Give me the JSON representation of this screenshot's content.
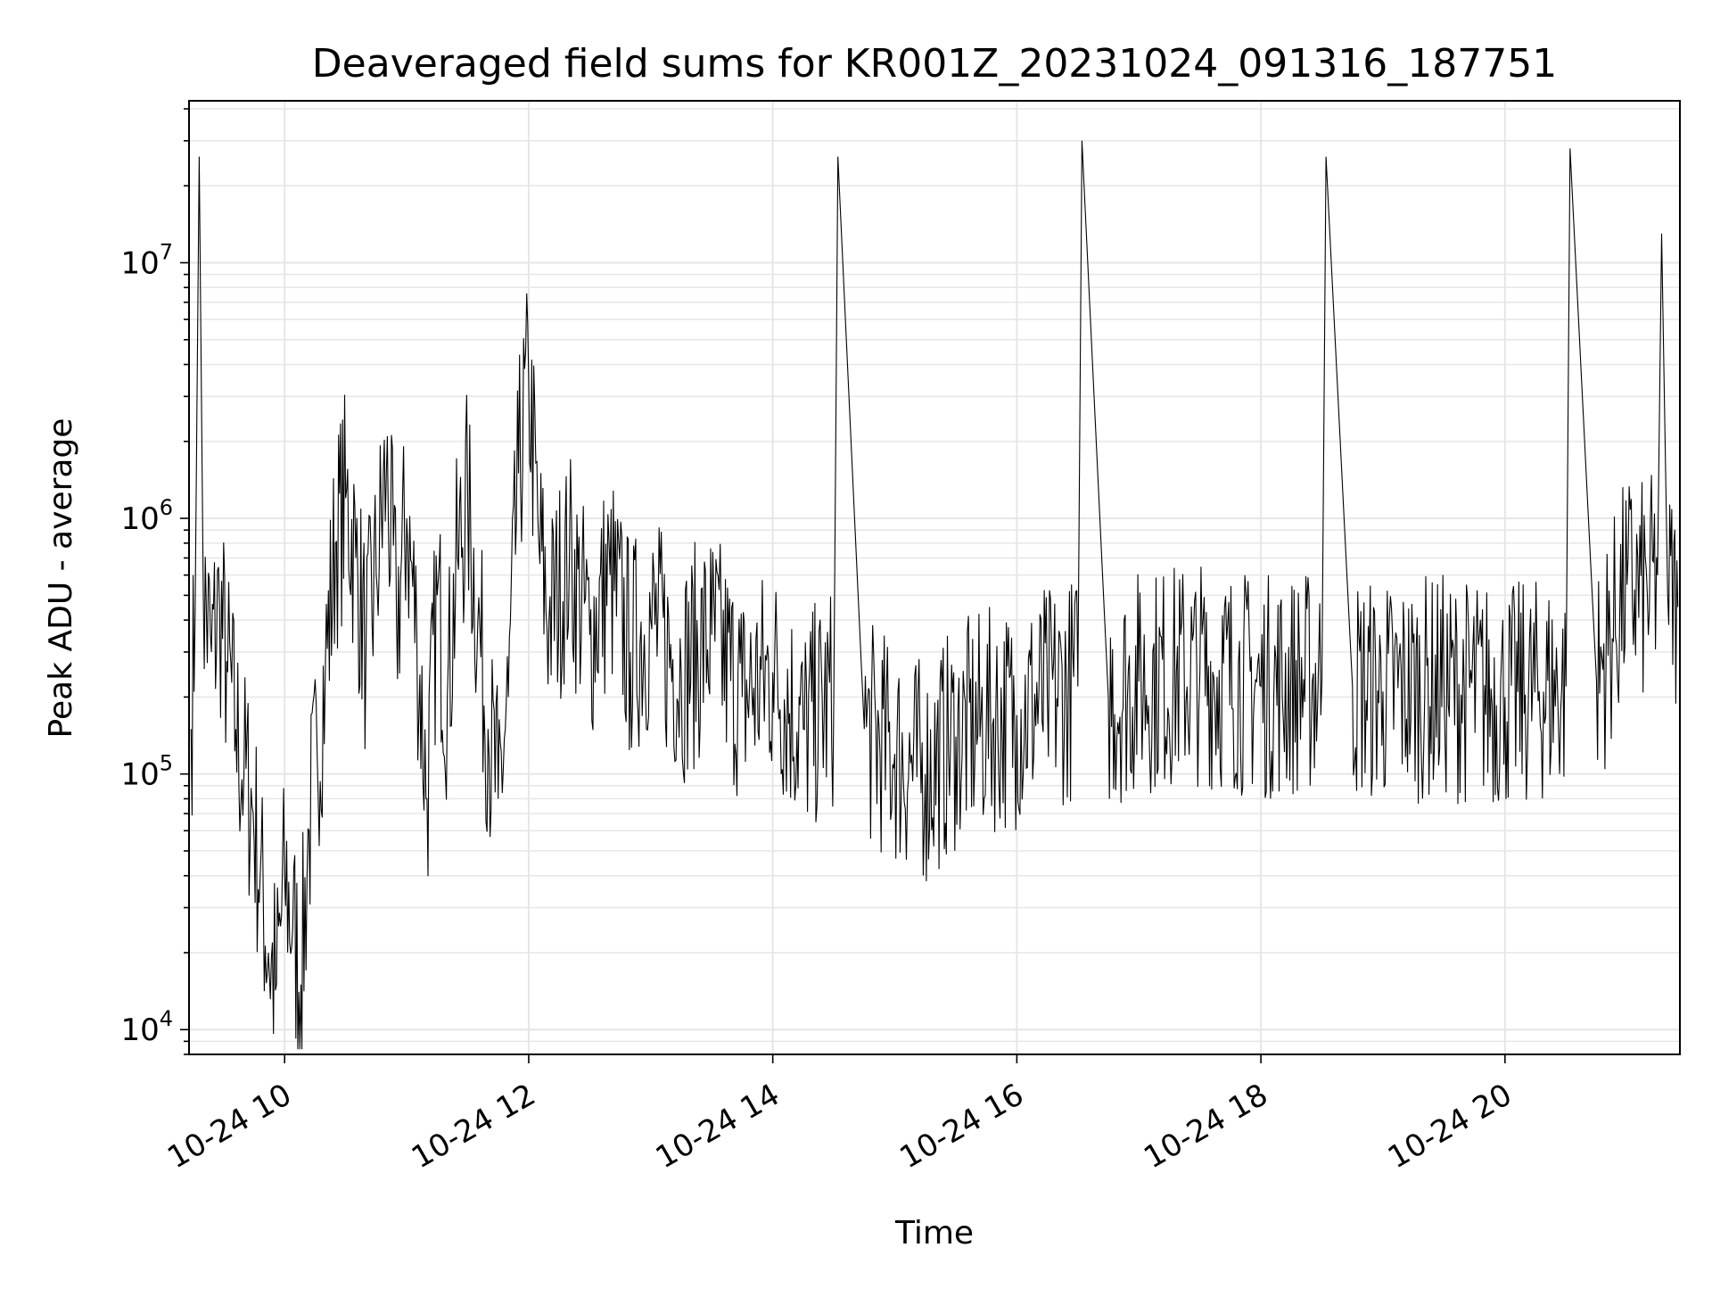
{
  "chart_data": {
    "type": "line",
    "title": "Deaveraged field sums for KR001Z_20231024_091316_187751",
    "xlabel": "Time",
    "ylabel": "Peak ADU - average",
    "yscale": "log",
    "xlim": [
      "2023-10-24 09:13",
      "2023-10-24 21:26"
    ],
    "ylim": [
      8000,
      43000000
    ],
    "x_ticks": [
      {
        "value": "2023-10-24 10:00",
        "label": "10-24 10"
      },
      {
        "value": "2023-10-24 12:00",
        "label": "10-24 12"
      },
      {
        "value": "2023-10-24 14:00",
        "label": "10-24 14"
      },
      {
        "value": "2023-10-24 16:00",
        "label": "10-24 16"
      },
      {
        "value": "2023-10-24 18:00",
        "label": "10-24 18"
      },
      {
        "value": "2023-10-24 20:00",
        "label": "10-24 20"
      }
    ],
    "y_ticks": [
      {
        "value": 10000,
        "base": "10",
        "exp": "4"
      },
      {
        "value": 100000,
        "base": "10",
        "exp": "5"
      },
      {
        "value": 1000000,
        "base": "10",
        "exp": "6"
      },
      {
        "value": 10000000,
        "base": "10",
        "exp": "7"
      }
    ],
    "grid": true,
    "line_color": "#000000",
    "grid_color": "#e6e6e6",
    "series": [
      {
        "points": [
          [
            "2023-10-24 09:14",
            150000
          ],
          [
            "2023-10-24 09:16",
            420000
          ],
          [
            "2023-10-24 09:18",
            26000000
          ],
          [
            "2023-10-24 09:20",
            500000
          ],
          [
            "2023-10-24 09:24",
            300000
          ],
          [
            "2023-10-24 09:28",
            450000
          ],
          [
            "2023-10-24 09:32",
            250000
          ],
          [
            "2023-10-24 09:36",
            150000
          ],
          [
            "2023-10-24 09:40",
            100000
          ],
          [
            "2023-10-24 09:44",
            75000
          ],
          [
            "2023-10-24 09:48",
            40000
          ],
          [
            "2023-10-24 09:52",
            20000
          ],
          [
            "2023-10-24 09:56",
            15000
          ],
          [
            "2023-10-24 10:00",
            40000
          ],
          [
            "2023-10-24 10:04",
            25000
          ],
          [
            "2023-10-24 10:08",
            15000
          ],
          [
            "2023-10-24 10:12",
            60000
          ],
          [
            "2023-10-24 10:16",
            120000
          ],
          [
            "2023-10-24 10:20",
            250000
          ],
          [
            "2023-10-24 10:25",
            800000
          ],
          [
            "2023-10-24 10:30",
            1200000
          ],
          [
            "2023-10-24 10:35",
            700000
          ],
          [
            "2023-10-24 10:40",
            300000
          ],
          [
            "2023-10-24 10:45",
            600000
          ],
          [
            "2023-10-24 10:50",
            1500000
          ],
          [
            "2023-10-24 10:55",
            400000
          ],
          [
            "2023-10-24 11:00",
            1000000
          ],
          [
            "2023-10-24 11:05",
            350000
          ],
          [
            "2023-10-24 11:10",
            80000
          ],
          [
            "2023-10-24 11:15",
            500000
          ],
          [
            "2023-10-24 11:20",
            200000
          ],
          [
            "2023-10-24 11:25",
            700000
          ],
          [
            "2023-10-24 11:30",
            1200000
          ],
          [
            "2023-10-24 11:35",
            400000
          ],
          [
            "2023-10-24 11:40",
            150000
          ],
          [
            "2023-10-24 11:45",
            80000
          ],
          [
            "2023-10-24 11:50",
            200000
          ],
          [
            "2023-10-24 11:55",
            1500000
          ],
          [
            "2023-10-24 12:00",
            3500000
          ],
          [
            "2023-10-24 12:05",
            800000
          ],
          [
            "2023-10-24 12:10",
            400000
          ],
          [
            "2023-10-24 12:20",
            700000
          ],
          [
            "2023-10-24 12:30",
            350000
          ],
          [
            "2023-10-24 12:40",
            600000
          ],
          [
            "2023-10-24 12:50",
            300000
          ],
          [
            "2023-10-24 13:00",
            400000
          ],
          [
            "2023-10-24 13:15",
            250000
          ],
          [
            "2023-10-24 13:30",
            350000
          ],
          [
            "2023-10-24 13:45",
            200000
          ],
          [
            "2023-10-24 14:00",
            250000
          ],
          [
            "2023-10-24 14:15",
            150000
          ],
          [
            "2023-10-24 14:30",
            200000
          ],
          [
            "2023-10-24 14:32",
            26000000
          ],
          [
            "2023-10-24 14:45",
            150000
          ],
          [
            "2023-10-24 15:00",
            120000
          ],
          [
            "2023-10-24 15:15",
            100000
          ],
          [
            "2023-10-24 15:30",
            140000
          ],
          [
            "2023-10-24 15:45",
            160000
          ],
          [
            "2023-10-24 16:00",
            170000
          ],
          [
            "2023-10-24 16:15",
            200000
          ],
          [
            "2023-10-24 16:30",
            220000
          ],
          [
            "2023-10-24 16:32",
            30000000
          ],
          [
            "2023-10-24 16:45",
            200000
          ],
          [
            "2023-10-24 17:00",
            230000
          ],
          [
            "2023-10-24 17:30",
            250000
          ],
          [
            "2023-10-24 18:00",
            220000
          ],
          [
            "2023-10-24 18:30",
            230000
          ],
          [
            "2023-10-24 18:32",
            26000000
          ],
          [
            "2023-10-24 18:45",
            220000
          ],
          [
            "2023-10-24 19:00",
            210000
          ],
          [
            "2023-10-24 19:30",
            220000
          ],
          [
            "2023-10-24 20:00",
            200000
          ],
          [
            "2023-10-24 20:30",
            220000
          ],
          [
            "2023-10-24 20:32",
            28000000
          ],
          [
            "2023-10-24 20:45",
            230000
          ],
          [
            "2023-10-24 21:00",
            550000
          ],
          [
            "2023-10-24 21:10",
            500000
          ],
          [
            "2023-10-24 21:15",
            600000
          ],
          [
            "2023-10-24 21:17",
            13000000
          ],
          [
            "2023-10-24 21:20",
            500000
          ],
          [
            "2023-10-24 21:25",
            450000
          ]
        ]
      }
    ]
  }
}
